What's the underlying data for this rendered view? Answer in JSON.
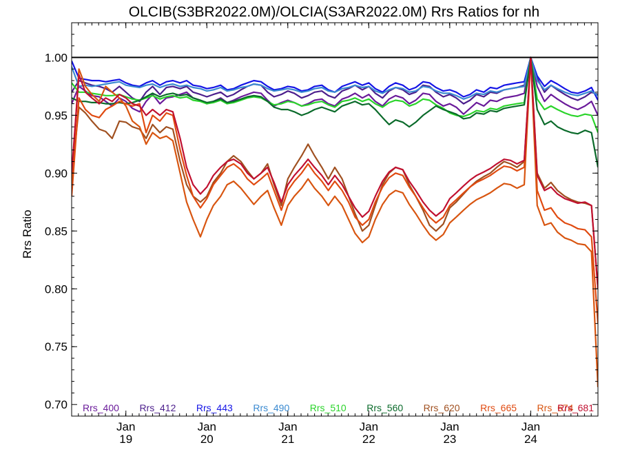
{
  "chart_data": {
    "type": "line",
    "title": "OLCIB(S3BR2022.0M)/OLCIA(S3AR2022.0M)  Rrs Ratios for nh",
    "xlabel": "",
    "ylabel": "Rrs Ratio",
    "ylim": [
      0.69,
      1.03
    ],
    "xlim": [
      2018.33,
      2024.83
    ],
    "reference_line": 1.0,
    "y_ticks": [
      0.7,
      0.75,
      0.8,
      0.85,
      0.9,
      0.95,
      1.0
    ],
    "y_tick_labels": [
      "0.70",
      "0.75",
      "0.80",
      "0.85",
      "0.90",
      "0.95",
      "1.00"
    ],
    "x_ticks": [
      {
        "value": 2019,
        "month": "Jan",
        "year": "19"
      },
      {
        "value": 2020,
        "month": "Jan",
        "year": "20"
      },
      {
        "value": 2021,
        "month": "Jan",
        "year": "21"
      },
      {
        "value": 2022,
        "month": "Jan",
        "year": "22"
      },
      {
        "value": 2023,
        "month": "Jan",
        "year": "23"
      },
      {
        "value": 2024,
        "month": "Jan",
        "year": "24"
      }
    ],
    "legend_position": "bottom",
    "x": [
      2018.33,
      2018.42,
      2018.5,
      2018.58,
      2018.67,
      2018.75,
      2018.83,
      2018.92,
      2019.0,
      2019.08,
      2019.17,
      2019.25,
      2019.33,
      2019.42,
      2019.5,
      2019.58,
      2019.67,
      2019.75,
      2019.83,
      2019.92,
      2020.0,
      2020.08,
      2020.17,
      2020.25,
      2020.33,
      2020.42,
      2020.5,
      2020.58,
      2020.67,
      2020.75,
      2020.83,
      2020.92,
      2021.0,
      2021.08,
      2021.17,
      2021.25,
      2021.33,
      2021.42,
      2021.5,
      2021.58,
      2021.67,
      2021.75,
      2021.83,
      2021.92,
      2022.0,
      2022.08,
      2022.17,
      2022.25,
      2022.33,
      2022.42,
      2022.5,
      2022.58,
      2022.67,
      2022.75,
      2022.83,
      2022.92,
      2023.0,
      2023.08,
      2023.17,
      2023.25,
      2023.33,
      2023.42,
      2023.5,
      2023.58,
      2023.67,
      2023.75,
      2023.83,
      2023.92,
      2024.0,
      2024.08,
      2024.17,
      2024.25,
      2024.33,
      2024.42,
      2024.5,
      2024.58,
      2024.67,
      2024.75,
      2024.83
    ],
    "series": [
      {
        "name": "Rrs_400",
        "color": "#6a1a9a",
        "values": [
          0.96,
          0.975,
          0.971,
          0.967,
          0.966,
          0.962,
          0.958,
          0.965,
          0.962,
          0.956,
          0.953,
          0.962,
          0.968,
          0.96,
          0.965,
          0.966,
          0.968,
          0.97,
          0.965,
          0.963,
          0.96,
          0.962,
          0.965,
          0.961,
          0.963,
          0.966,
          0.968,
          0.97,
          0.969,
          0.963,
          0.958,
          0.961,
          0.963,
          0.961,
          0.958,
          0.96,
          0.963,
          0.964,
          0.96,
          0.958,
          0.964,
          0.966,
          0.969,
          0.965,
          0.968,
          0.962,
          0.958,
          0.964,
          0.967,
          0.965,
          0.96,
          0.963,
          0.969,
          0.968,
          0.962,
          0.958,
          0.96,
          0.957,
          0.951,
          0.956,
          0.961,
          0.958,
          0.963,
          0.962,
          0.965,
          0.966,
          0.967,
          0.969,
          1.0,
          0.975,
          0.962,
          0.968,
          0.964,
          0.96,
          0.957,
          0.955,
          0.958,
          0.962,
          0.95
        ]
      },
      {
        "name": "Rrs_412",
        "color": "#4c1e8c",
        "values": [
          0.97,
          0.98,
          0.978,
          0.976,
          0.975,
          0.973,
          0.97,
          0.975,
          0.97,
          0.965,
          0.962,
          0.97,
          0.975,
          0.968,
          0.974,
          0.975,
          0.973,
          0.975,
          0.97,
          0.968,
          0.966,
          0.968,
          0.97,
          0.966,
          0.968,
          0.972,
          0.975,
          0.977,
          0.976,
          0.97,
          0.966,
          0.968,
          0.971,
          0.969,
          0.965,
          0.967,
          0.97,
          0.971,
          0.967,
          0.965,
          0.971,
          0.973,
          0.976,
          0.972,
          0.975,
          0.969,
          0.965,
          0.971,
          0.974,
          0.972,
          0.968,
          0.97,
          0.976,
          0.975,
          0.97,
          0.966,
          0.968,
          0.965,
          0.96,
          0.963,
          0.968,
          0.966,
          0.97,
          0.969,
          0.972,
          0.973,
          0.974,
          0.976,
          1.0,
          0.982,
          0.97,
          0.976,
          0.972,
          0.968,
          0.965,
          0.963,
          0.966,
          0.97,
          0.968
        ]
      },
      {
        "name": "Rrs_443",
        "color": "#1414e6",
        "values": [
          0.997,
          0.982,
          0.981,
          0.98,
          0.98,
          0.979,
          0.98,
          0.981,
          0.978,
          0.976,
          0.975,
          0.978,
          0.98,
          0.976,
          0.979,
          0.98,
          0.978,
          0.98,
          0.976,
          0.975,
          0.973,
          0.974,
          0.976,
          0.972,
          0.973,
          0.976,
          0.978,
          0.98,
          0.979,
          0.975,
          0.972,
          0.973,
          0.975,
          0.974,
          0.971,
          0.972,
          0.975,
          0.976,
          0.972,
          0.97,
          0.975,
          0.977,
          0.979,
          0.976,
          0.978,
          0.973,
          0.97,
          0.975,
          0.978,
          0.976,
          0.972,
          0.974,
          0.979,
          0.978,
          0.974,
          0.971,
          0.972,
          0.97,
          0.966,
          0.968,
          0.972,
          0.97,
          0.974,
          0.973,
          0.976,
          0.977,
          0.978,
          0.979,
          1.0,
          0.984,
          0.975,
          0.98,
          0.977,
          0.973,
          0.97,
          0.969,
          0.971,
          0.974,
          0.963
        ]
      },
      {
        "name": "Rrs_490",
        "color": "#3a8ad0",
        "values": [
          0.992,
          0.975,
          0.976,
          0.975,
          0.976,
          0.977,
          0.978,
          0.979,
          0.976,
          0.975,
          0.974,
          0.976,
          0.977,
          0.974,
          0.976,
          0.977,
          0.975,
          0.976,
          0.974,
          0.973,
          0.971,
          0.972,
          0.974,
          0.971,
          0.972,
          0.974,
          0.975,
          0.977,
          0.976,
          0.973,
          0.971,
          0.972,
          0.973,
          0.972,
          0.97,
          0.971,
          0.973,
          0.974,
          0.971,
          0.97,
          0.973,
          0.974,
          0.976,
          0.974,
          0.975,
          0.971,
          0.969,
          0.972,
          0.974,
          0.973,
          0.97,
          0.971,
          0.975,
          0.974,
          0.971,
          0.969,
          0.969,
          0.967,
          0.964,
          0.966,
          0.969,
          0.968,
          0.971,
          0.97,
          0.972,
          0.973,
          0.974,
          0.975,
          1.0,
          0.98,
          0.972,
          0.976,
          0.973,
          0.97,
          0.968,
          0.967,
          0.969,
          0.971,
          0.967
        ]
      },
      {
        "name": "Rrs_510",
        "color": "#2ad42a",
        "values": [
          0.978,
          0.97,
          0.97,
          0.969,
          0.968,
          0.967,
          0.967,
          0.968,
          0.966,
          0.964,
          0.963,
          0.965,
          0.967,
          0.964,
          0.966,
          0.967,
          0.965,
          0.966,
          0.963,
          0.962,
          0.96,
          0.961,
          0.963,
          0.96,
          0.961,
          0.963,
          0.965,
          0.966,
          0.965,
          0.962,
          0.959,
          0.96,
          0.962,
          0.961,
          0.958,
          0.959,
          0.961,
          0.962,
          0.959,
          0.957,
          0.962,
          0.963,
          0.965,
          0.962,
          0.964,
          0.96,
          0.957,
          0.961,
          0.963,
          0.962,
          0.958,
          0.96,
          0.964,
          0.963,
          0.959,
          0.956,
          0.952,
          0.95,
          0.949,
          0.951,
          0.954,
          0.953,
          0.956,
          0.955,
          0.958,
          0.959,
          0.96,
          0.961,
          1.0,
          0.964,
          0.955,
          0.958,
          0.955,
          0.952,
          0.95,
          0.949,
          0.951,
          0.95,
          0.935
        ]
      },
      {
        "name": "Rrs_560",
        "color": "#0a6a2a",
        "values": [
          0.965,
          0.962,
          0.962,
          0.961,
          0.961,
          0.96,
          0.96,
          0.961,
          0.96,
          0.961,
          0.963,
          0.966,
          0.969,
          0.966,
          0.968,
          0.969,
          0.967,
          0.968,
          0.965,
          0.963,
          0.961,
          0.962,
          0.964,
          0.961,
          0.962,
          0.964,
          0.966,
          0.967,
          0.966,
          0.962,
          0.957,
          0.955,
          0.955,
          0.953,
          0.95,
          0.952,
          0.955,
          0.957,
          0.955,
          0.953,
          0.958,
          0.96,
          0.962,
          0.959,
          0.96,
          0.955,
          0.948,
          0.942,
          0.946,
          0.944,
          0.94,
          0.944,
          0.95,
          0.954,
          0.958,
          0.955,
          0.953,
          0.951,
          0.947,
          0.948,
          0.952,
          0.951,
          0.954,
          0.953,
          0.956,
          0.957,
          0.958,
          0.959,
          1.0,
          0.955,
          0.942,
          0.945,
          0.94,
          0.937,
          0.935,
          0.934,
          0.937,
          0.935,
          0.905
        ]
      },
      {
        "name": "Rrs_620",
        "color": "#a05020",
        "values": [
          0.895,
          0.957,
          0.952,
          0.945,
          0.938,
          0.936,
          0.93,
          0.945,
          0.944,
          0.94,
          0.938,
          0.93,
          0.942,
          0.935,
          0.94,
          0.938,
          0.91,
          0.89,
          0.88,
          0.875,
          0.88,
          0.892,
          0.9,
          0.91,
          0.915,
          0.91,
          0.902,
          0.895,
          0.9,
          0.908,
          0.89,
          0.872,
          0.895,
          0.905,
          0.915,
          0.925,
          0.915,
          0.905,
          0.895,
          0.905,
          0.895,
          0.88,
          0.865,
          0.85,
          0.855,
          0.872,
          0.89,
          0.9,
          0.905,
          0.903,
          0.89,
          0.88,
          0.868,
          0.855,
          0.85,
          0.856,
          0.87,
          0.875,
          0.882,
          0.888,
          0.893,
          0.897,
          0.9,
          0.905,
          0.91,
          0.908,
          0.905,
          0.91,
          1.0,
          0.9,
          0.887,
          0.892,
          0.885,
          0.88,
          0.877,
          0.875,
          0.874,
          0.872,
          0.8
        ]
      },
      {
        "name": "Rrs_665",
        "color": "#e04a10",
        "values": [
          0.88,
          0.965,
          0.955,
          0.95,
          0.948,
          0.955,
          0.958,
          0.962,
          0.96,
          0.958,
          0.96,
          0.935,
          0.95,
          0.945,
          0.952,
          0.95,
          0.92,
          0.898,
          0.88,
          0.87,
          0.878,
          0.89,
          0.898,
          0.905,
          0.908,
          0.903,
          0.895,
          0.89,
          0.895,
          0.9,
          0.885,
          0.868,
          0.885,
          0.893,
          0.9,
          0.908,
          0.9,
          0.893,
          0.885,
          0.893,
          0.885,
          0.875,
          0.862,
          0.855,
          0.86,
          0.875,
          0.888,
          0.896,
          0.9,
          0.898,
          0.888,
          0.88,
          0.87,
          0.862,
          0.857,
          0.862,
          0.872,
          0.877,
          0.883,
          0.888,
          0.892,
          0.895,
          0.898,
          0.902,
          0.906,
          0.905,
          0.902,
          0.905,
          1.0,
          0.885,
          0.868,
          0.87,
          0.862,
          0.857,
          0.855,
          0.852,
          0.851,
          0.845,
          0.77
        ]
      },
      {
        "name": "Rrs_674",
        "color": "#d85510",
        "values": [
          0.892,
          0.99,
          0.975,
          0.968,
          0.962,
          0.975,
          0.97,
          0.965,
          0.958,
          0.945,
          0.94,
          0.925,
          0.935,
          0.93,
          0.932,
          0.928,
          0.9,
          0.875,
          0.86,
          0.845,
          0.86,
          0.872,
          0.88,
          0.89,
          0.893,
          0.887,
          0.88,
          0.873,
          0.88,
          0.885,
          0.87,
          0.855,
          0.872,
          0.88,
          0.887,
          0.895,
          0.887,
          0.88,
          0.872,
          0.88,
          0.872,
          0.86,
          0.848,
          0.84,
          0.845,
          0.86,
          0.873,
          0.881,
          0.885,
          0.883,
          0.873,
          0.865,
          0.855,
          0.847,
          0.842,
          0.847,
          0.857,
          0.862,
          0.868,
          0.873,
          0.877,
          0.88,
          0.883,
          0.887,
          0.891,
          0.89,
          0.887,
          0.89,
          1.0,
          0.872,
          0.855,
          0.857,
          0.849,
          0.844,
          0.842,
          0.839,
          0.838,
          0.832,
          0.715
        ]
      },
      {
        "name": "Rrs_681",
        "color": "#c01030",
        "values": [
          0.9,
          0.985,
          0.97,
          0.965,
          0.96,
          0.965,
          0.962,
          0.968,
          0.965,
          0.96,
          0.958,
          0.95,
          0.955,
          0.95,
          0.955,
          0.953,
          0.93,
          0.905,
          0.89,
          0.882,
          0.888,
          0.898,
          0.905,
          0.91,
          0.912,
          0.908,
          0.9,
          0.895,
          0.9,
          0.905,
          0.892,
          0.875,
          0.89,
          0.898,
          0.905,
          0.912,
          0.905,
          0.898,
          0.89,
          0.898,
          0.89,
          0.88,
          0.87,
          0.862,
          0.867,
          0.88,
          0.893,
          0.901,
          0.905,
          0.903,
          0.893,
          0.885,
          0.875,
          0.868,
          0.863,
          0.868,
          0.878,
          0.883,
          0.889,
          0.894,
          0.898,
          0.901,
          0.904,
          0.908,
          0.912,
          0.911,
          0.908,
          0.911,
          1.0,
          0.898,
          0.885,
          0.888,
          0.882,
          0.878,
          0.876,
          0.874,
          0.875,
          0.872,
          0.8
        ]
      }
    ]
  }
}
